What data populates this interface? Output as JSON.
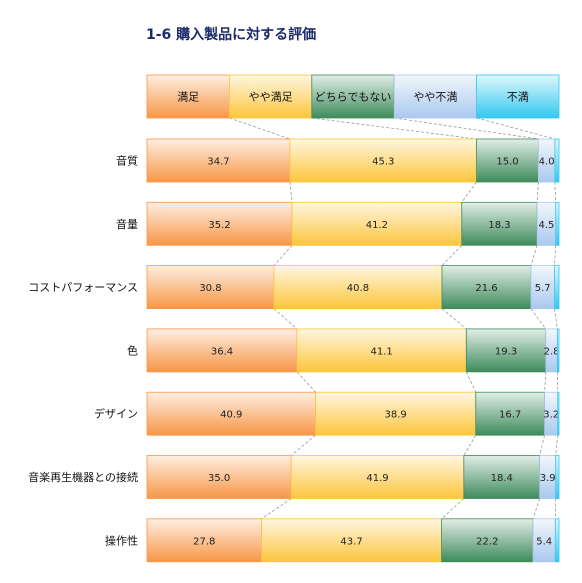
{
  "chart_data": {
    "type": "bar",
    "stacked": true,
    "orientation": "horizontal",
    "normalized_percent": true,
    "title": "1-6 購入製品に対する評価",
    "categories": [
      "音質",
      "音量",
      "コストパフォーマンス",
      "色",
      "デザイン",
      "音楽再生機器との接続",
      "操作性"
    ],
    "series": [
      {
        "name": "満足",
        "color": "#f79646",
        "values": [
          34.7,
          35.2,
          30.8,
          36.4,
          40.9,
          35.0,
          27.8
        ]
      },
      {
        "name": "やや満足",
        "color": "#fcc63c",
        "values": [
          45.3,
          41.2,
          40.8,
          41.1,
          38.9,
          41.9,
          43.7
        ]
      },
      {
        "name": "どちらでもない",
        "color": "#3e8b5c",
        "values": [
          15.0,
          18.3,
          21.6,
          19.3,
          16.7,
          18.4,
          22.2
        ]
      },
      {
        "name": "やや不満",
        "color": "#a9c9ee",
        "values": [
          4.0,
          4.5,
          5.7,
          2.8,
          3.2,
          3.9,
          5.4
        ]
      },
      {
        "name": "不満",
        "color": "#33c8f0",
        "values": [
          1.0,
          0.8,
          1.1,
          0.4,
          0.3,
          0.8,
          0.9
        ]
      }
    ],
    "data_labels": {
      "満足": [
        "34.7",
        "35.2",
        "30.8",
        "36.4",
        "40.9",
        "35.0",
        "27.8"
      ],
      "やや満足": [
        "45.3",
        "41.2",
        "40.8",
        "41.1",
        "38.9",
        "41.9",
        "43.7"
      ],
      "どちらでもない": [
        "15.0",
        "18.3",
        "21.6",
        "19.3",
        "16.7",
        "18.4",
        "22.2"
      ],
      "やや不満": [
        "4.0",
        "4.5",
        "5.7",
        "2.8",
        "3.2",
        "3.9",
        "5.4"
      ]
    },
    "xlim": [
      0,
      100
    ],
    "legend_position": "top"
  }
}
